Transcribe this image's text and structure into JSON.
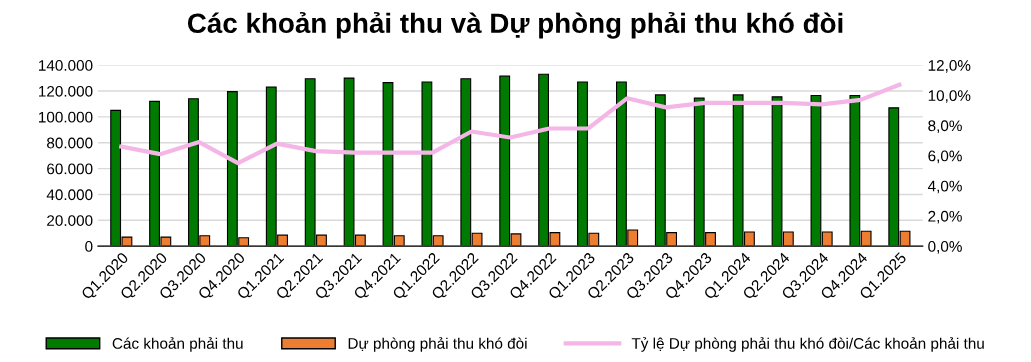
{
  "chart_data": {
    "type": "bar",
    "title": "Các khoản phải thu và Dự phòng phải thu khó đòi",
    "categories": [
      "Q1.2020",
      "Q2.2020",
      "Q3.2020",
      "Q4.2020",
      "Q1.2021",
      "Q2.2021",
      "Q3.2021",
      "Q4.2021",
      "Q1.2022",
      "Q2.2022",
      "Q3.2022",
      "Q4.2022",
      "Q1.2023",
      "Q2.2023",
      "Q3.2023",
      "Q4.2023",
      "Q1.2024",
      "Q2.2024",
      "Q3.2024",
      "Q4.2024",
      "Q1.2025"
    ],
    "series": [
      {
        "name": "Các khoản phải thu",
        "color": "#007a00",
        "values": [
          105000,
          112000,
          114000,
          119500,
          123000,
          129500,
          130000,
          126500,
          127000,
          129500,
          131500,
          133000,
          127000,
          127000,
          117000,
          114500,
          117000,
          115500,
          116500,
          116500,
          107000
        ]
      },
      {
        "name": "Dự phòng phải thu khó đòi",
        "color": "#ed7d31",
        "values": [
          7000,
          7000,
          8000,
          6500,
          8500,
          8500,
          8500,
          8000,
          8000,
          10000,
          9500,
          10500,
          10000,
          12500,
          10500,
          10500,
          11000,
          11000,
          11000,
          11500,
          11500
        ]
      },
      {
        "name": "Tỷ lệ Dự phòng phải thu khó đòi/Các khoản phải thu",
        "color": "#f4b6e6",
        "type": "line",
        "axis": "y2",
        "values": [
          6.6,
          6.1,
          6.9,
          5.5,
          6.8,
          6.3,
          6.2,
          6.2,
          6.2,
          7.6,
          7.2,
          7.8,
          7.8,
          9.8,
          9.2,
          9.5,
          9.5,
          9.5,
          9.4,
          9.7,
          10.7
        ]
      }
    ],
    "ylim": [
      0,
      140000
    ],
    "yticks": [
      {
        "value": 0,
        "label": "0"
      },
      {
        "value": 20000,
        "label": "20.000"
      },
      {
        "value": 40000,
        "label": "40.000"
      },
      {
        "value": 60000,
        "label": "60.000"
      },
      {
        "value": 80000,
        "label": "80.000"
      },
      {
        "value": 100000,
        "label": "100.000"
      },
      {
        "value": 120000,
        "label": "120.000"
      },
      {
        "value": 140000,
        "label": "140.000"
      }
    ],
    "y2lim": [
      0,
      12
    ],
    "y2ticks": [
      {
        "value": 0,
        "label": "0,0%"
      },
      {
        "value": 2,
        "label": "2,0%"
      },
      {
        "value": 4,
        "label": "4,0%"
      },
      {
        "value": 6,
        "label": "6,0%"
      },
      {
        "value": 8,
        "label": "8,0%"
      },
      {
        "value": 10,
        "label": "10,0%"
      },
      {
        "value": 12,
        "label": "12,0%"
      }
    ],
    "grid": "y",
    "legend": "bottom",
    "marker": "none",
    "line_style": "solid"
  }
}
